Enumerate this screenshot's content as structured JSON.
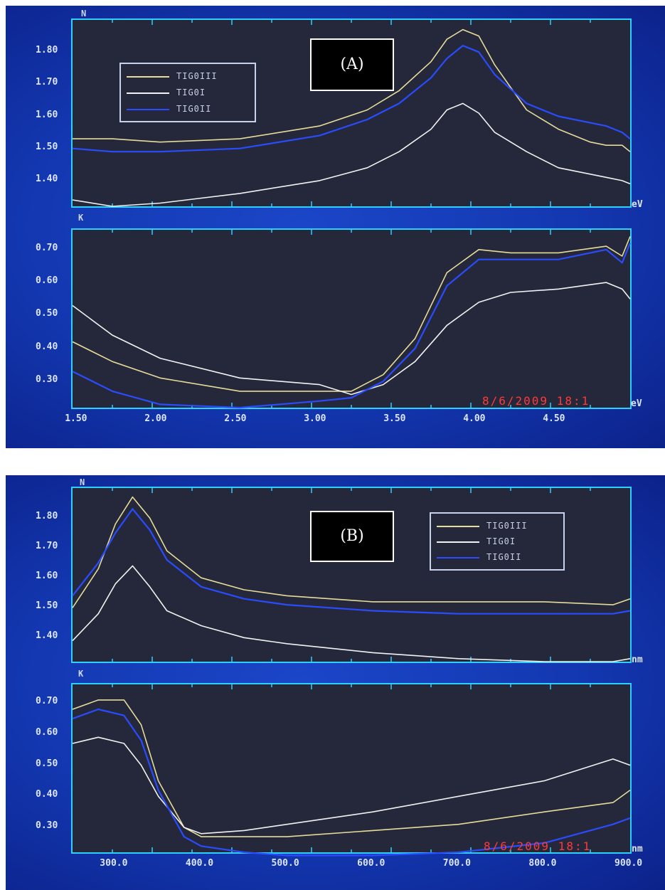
{
  "colors": {
    "TIG0III": "#e6dc9a",
    "TIG0I": "#f2f2f2",
    "TIG0II": "#2a4cff"
  },
  "chart_data": [
    {
      "panel": "(A)",
      "type": "line",
      "subplots": [
        {
          "ylabel": "N",
          "xlabel": "eV",
          "xlim": [
            1.45,
            4.95
          ],
          "ylim": [
            1.32,
            1.9
          ],
          "yticks": [
            "1.80",
            "1.70",
            "1.60",
            "1.50",
            "1.40"
          ],
          "legend": "top-left",
          "series": [
            {
              "name": "TIG0III",
              "x": [
                1.45,
                1.7,
                2.0,
                2.5,
                3.0,
                3.3,
                3.5,
                3.7,
                3.8,
                3.9,
                4.0,
                4.1,
                4.3,
                4.5,
                4.7,
                4.8,
                4.9,
                4.95
              ],
              "y": [
                1.53,
                1.53,
                1.52,
                1.53,
                1.57,
                1.62,
                1.68,
                1.77,
                1.84,
                1.87,
                1.85,
                1.76,
                1.62,
                1.56,
                1.52,
                1.51,
                1.51,
                1.49
              ]
            },
            {
              "name": "TIG0I",
              "x": [
                1.45,
                1.7,
                2.0,
                2.5,
                3.0,
                3.3,
                3.5,
                3.7,
                3.8,
                3.9,
                4.0,
                4.1,
                4.3,
                4.5,
                4.7,
                4.8,
                4.9,
                4.95
              ],
              "y": [
                1.34,
                1.32,
                1.33,
                1.36,
                1.4,
                1.44,
                1.49,
                1.56,
                1.62,
                1.64,
                1.61,
                1.55,
                1.49,
                1.44,
                1.42,
                1.41,
                1.4,
                1.39
              ]
            },
            {
              "name": "TIG0II",
              "x": [
                1.45,
                1.7,
                2.0,
                2.5,
                3.0,
                3.3,
                3.5,
                3.7,
                3.8,
                3.9,
                4.0,
                4.1,
                4.3,
                4.5,
                4.7,
                4.8,
                4.9,
                4.95
              ],
              "y": [
                1.5,
                1.49,
                1.49,
                1.5,
                1.54,
                1.59,
                1.64,
                1.72,
                1.78,
                1.82,
                1.8,
                1.73,
                1.64,
                1.6,
                1.58,
                1.57,
                1.55,
                1.53
              ]
            }
          ]
        },
        {
          "ylabel": "K",
          "xlabel": "eV",
          "xlim": [
            1.45,
            4.95
          ],
          "ylim": [
            0.22,
            0.76
          ],
          "xticks": [
            "1.50",
            "2.00",
            "2.50",
            "3.00",
            "3.50",
            "4.00",
            "4.50"
          ],
          "yticks": [
            "0.70",
            "0.60",
            "0.50",
            "0.40",
            "0.30"
          ],
          "series": [
            {
              "name": "TIG0III",
              "x": [
                1.45,
                1.7,
                2.0,
                2.5,
                3.0,
                3.2,
                3.4,
                3.6,
                3.8,
                4.0,
                4.2,
                4.5,
                4.8,
                4.9,
                4.95
              ],
              "y": [
                0.42,
                0.36,
                0.31,
                0.27,
                0.27,
                0.27,
                0.32,
                0.43,
                0.63,
                0.7,
                0.69,
                0.69,
                0.71,
                0.68,
                0.74
              ]
            },
            {
              "name": "TIG0I",
              "x": [
                1.45,
                1.7,
                2.0,
                2.5,
                3.0,
                3.2,
                3.4,
                3.6,
                3.8,
                4.0,
                4.2,
                4.5,
                4.8,
                4.9,
                4.95
              ],
              "y": [
                0.53,
                0.44,
                0.37,
                0.31,
                0.29,
                0.26,
                0.29,
                0.36,
                0.47,
                0.54,
                0.57,
                0.58,
                0.6,
                0.58,
                0.55
              ]
            },
            {
              "name": "TIG0II",
              "x": [
                1.45,
                1.7,
                2.0,
                2.5,
                3.0,
                3.2,
                3.4,
                3.6,
                3.8,
                4.0,
                4.2,
                4.5,
                4.8,
                4.9,
                4.95
              ],
              "y": [
                0.33,
                0.27,
                0.23,
                0.22,
                0.24,
                0.25,
                0.3,
                0.4,
                0.59,
                0.67,
                0.67,
                0.67,
                0.7,
                0.66,
                0.72
              ]
            }
          ]
        }
      ],
      "timestamp": "8/6/2009   18:1"
    },
    {
      "panel": "(B)",
      "type": "line",
      "subplots": [
        {
          "ylabel": "N",
          "xlabel": "nm",
          "xlim": [
            250,
            900
          ],
          "ylim": [
            1.32,
            1.9
          ],
          "yticks": [
            "1.80",
            "1.70",
            "1.60",
            "1.50",
            "1.40"
          ],
          "legend": "top-right",
          "series": [
            {
              "name": "TIG0III",
              "x": [
                250,
                280,
                300,
                320,
                340,
                360,
                400,
                450,
                500,
                600,
                700,
                800,
                880,
                900
              ],
              "y": [
                1.5,
                1.63,
                1.78,
                1.87,
                1.8,
                1.69,
                1.6,
                1.56,
                1.54,
                1.52,
                1.52,
                1.52,
                1.51,
                1.53
              ]
            },
            {
              "name": "TIG0I",
              "x": [
                250,
                280,
                300,
                320,
                340,
                360,
                400,
                450,
                500,
                600,
                700,
                800,
                880,
                900
              ],
              "y": [
                1.39,
                1.48,
                1.58,
                1.64,
                1.57,
                1.49,
                1.44,
                1.4,
                1.38,
                1.35,
                1.33,
                1.32,
                1.32,
                1.33
              ]
            },
            {
              "name": "TIG0II",
              "x": [
                250,
                280,
                300,
                320,
                340,
                360,
                400,
                450,
                500,
                600,
                700,
                800,
                880,
                900
              ],
              "y": [
                1.54,
                1.65,
                1.75,
                1.83,
                1.76,
                1.66,
                1.57,
                1.53,
                1.51,
                1.49,
                1.48,
                1.48,
                1.48,
                1.49
              ]
            }
          ]
        },
        {
          "ylabel": "K",
          "xlabel": "nm",
          "xlim": [
            250,
            900
          ],
          "ylim": [
            0.22,
            0.76
          ],
          "xticks": [
            "300.0",
            "400.0",
            "500.0",
            "600.0",
            "700.0",
            "800.0",
            "900.0"
          ],
          "yticks": [
            "0.70",
            "0.60",
            "0.50",
            "0.40",
            "0.30"
          ],
          "series": [
            {
              "name": "TIG0III",
              "x": [
                250,
                280,
                310,
                330,
                350,
                380,
                400,
                450,
                500,
                600,
                700,
                800,
                880,
                900
              ],
              "y": [
                0.68,
                0.71,
                0.71,
                0.63,
                0.45,
                0.3,
                0.27,
                0.27,
                0.27,
                0.29,
                0.31,
                0.35,
                0.38,
                0.42
              ]
            },
            {
              "name": "TIG0I",
              "x": [
                250,
                280,
                310,
                330,
                350,
                380,
                400,
                450,
                500,
                600,
                700,
                800,
                880,
                900
              ],
              "y": [
                0.57,
                0.59,
                0.57,
                0.5,
                0.4,
                0.3,
                0.28,
                0.29,
                0.31,
                0.35,
                0.4,
                0.45,
                0.52,
                0.5
              ]
            },
            {
              "name": "TIG0II",
              "x": [
                250,
                280,
                310,
                330,
                350,
                380,
                400,
                450,
                500,
                600,
                700,
                800,
                880,
                900
              ],
              "y": [
                0.65,
                0.68,
                0.66,
                0.58,
                0.42,
                0.27,
                0.24,
                0.22,
                0.21,
                0.21,
                0.22,
                0.25,
                0.31,
                0.33
              ]
            }
          ]
        }
      ],
      "timestamp": "8/6/2009   18:1"
    }
  ]
}
